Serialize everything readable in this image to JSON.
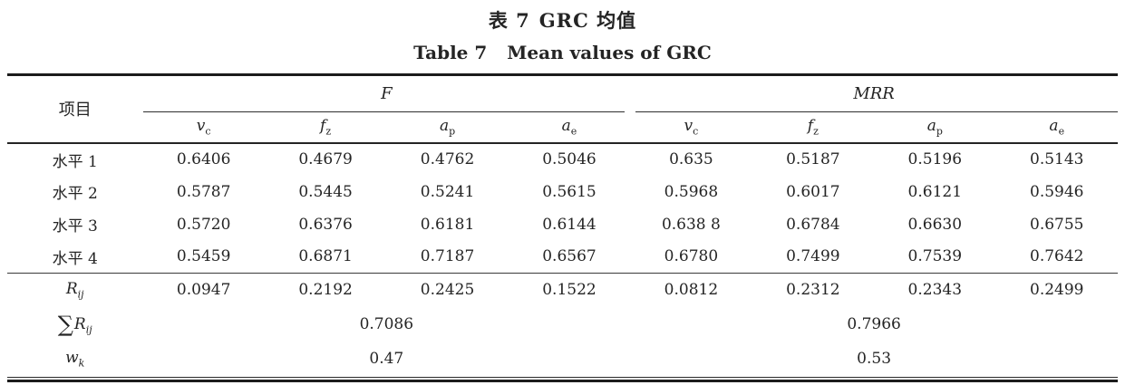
{
  "titles": {
    "zh_label": "表 7",
    "zh_text": "GRC 均值",
    "en_label": "Table 7",
    "en_text": "Mean values of GRC"
  },
  "table": {
    "item_header": "项目",
    "group_f": "F",
    "group_mrr": "MRR",
    "sub_headers": [
      {
        "base": "v",
        "sub": "c"
      },
      {
        "base": "f",
        "sub": "z"
      },
      {
        "base": "a",
        "sub": "p"
      },
      {
        "base": "a",
        "sub": "e"
      },
      {
        "base": "v",
        "sub": "c"
      },
      {
        "base": "f",
        "sub": "z"
      },
      {
        "base": "a",
        "sub": "p"
      },
      {
        "base": "a",
        "sub": "e"
      }
    ],
    "rows": [
      {
        "label": "水平 1",
        "values": [
          "0.6406",
          "0.4679",
          "0.4762",
          "0.5046",
          "0.635",
          "0.5187",
          "0.5196",
          "0.5143"
        ]
      },
      {
        "label": "水平 2",
        "values": [
          "0.5787",
          "0.5445",
          "0.5241",
          "0.5615",
          "0.5968",
          "0.6017",
          "0.6121",
          "0.5946"
        ]
      },
      {
        "label": "水平 3",
        "values": [
          "0.5720",
          "0.6376",
          "0.6181",
          "0.6144",
          "0.638 8",
          "0.6784",
          "0.6630",
          "0.6755"
        ]
      },
      {
        "label": "水平 4",
        "values": [
          "0.5459",
          "0.6871",
          "0.7187",
          "0.6567",
          "0.6780",
          "0.7499",
          "0.7539",
          "0.7642"
        ]
      }
    ],
    "rij": {
      "base": "R",
      "sub": "ij",
      "values": [
        "0.0947",
        "0.2192",
        "0.2425",
        "0.1522",
        "0.0812",
        "0.2312",
        "0.2343",
        "0.2499"
      ]
    },
    "sum_rij": {
      "sigma": "∑",
      "base": "R",
      "sub": "ij",
      "f": "0.7086",
      "mrr": "0.7966"
    },
    "wk": {
      "base": "w",
      "sub": "k",
      "f": "0.47",
      "mrr": "0.53"
    }
  }
}
